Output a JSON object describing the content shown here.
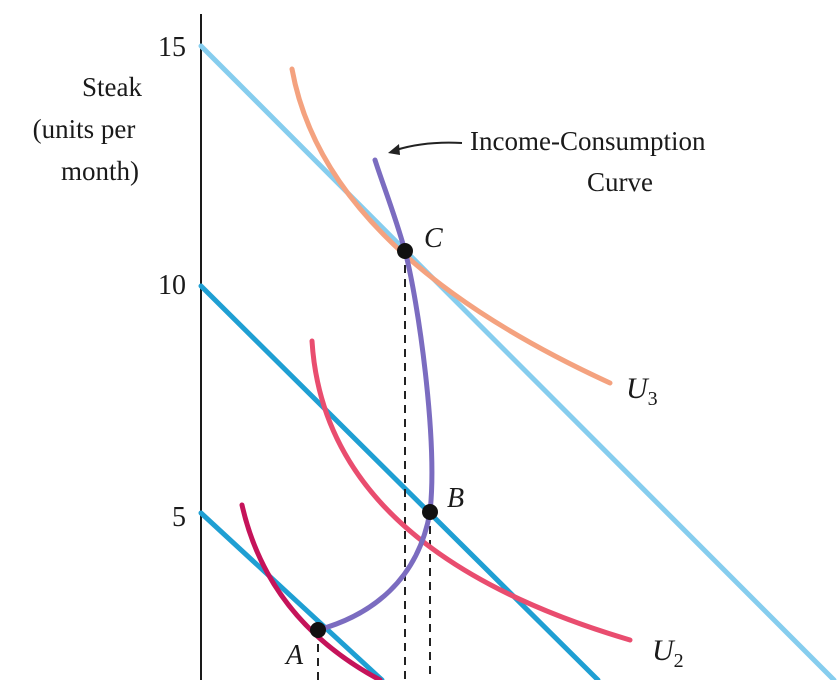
{
  "chart_data": {
    "type": "line",
    "ylabel_lines": [
      "Steak",
      "(units per",
      "month)"
    ],
    "ylim": [
      0,
      15
    ],
    "y_ticks": [
      {
        "value": 15,
        "label": "15"
      },
      {
        "value": 10,
        "label": "10"
      },
      {
        "value": 5,
        "label": "5"
      }
    ],
    "budget_lines": [
      {
        "y_intercept": 5,
        "color": "#1f9fd3"
      },
      {
        "y_intercept": 10,
        "color": "#1f9fd3"
      },
      {
        "y_intercept": 15,
        "color": "#86cdee"
      }
    ],
    "indifference_curves": [
      {
        "name": "U",
        "subscript": "3",
        "color": "#f4a27f"
      },
      {
        "name": "U",
        "subscript": "2",
        "color": "#e94d6f"
      },
      {
        "name": "",
        "subscript": "",
        "color": "#c5135a"
      }
    ],
    "points": [
      {
        "label": "A",
        "y": 2.5
      },
      {
        "label": "B",
        "y": 5
      },
      {
        "label": "C",
        "y": 10.5
      }
    ],
    "income_consumption_curve": {
      "label_lines": [
        "Income-Consumption",
        "Curve"
      ],
      "color": "#7b6cc0"
    }
  }
}
